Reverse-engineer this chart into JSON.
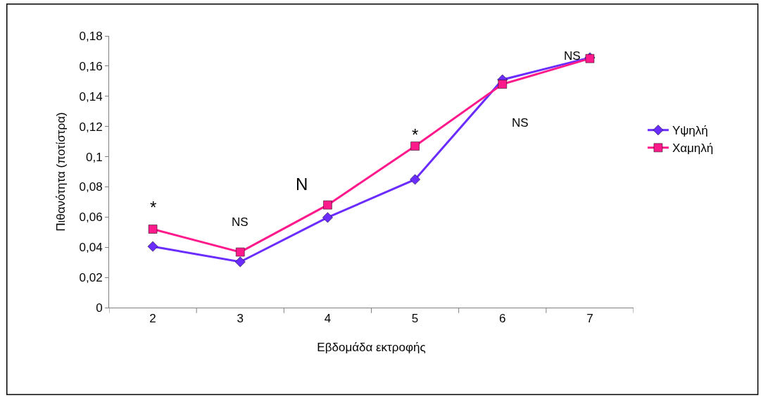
{
  "chart_data": {
    "type": "line",
    "xlabel": "Εβδομάδα εκτροφής",
    "ylabel": "Πιθανότητα (ποτίστρα)",
    "categories": [
      "2",
      "3",
      "4",
      "5",
      "6",
      "7"
    ],
    "series": [
      {
        "name": "Υψηλή",
        "color": "#6a2cff",
        "marker": "diamond",
        "values": [
          0.0405,
          0.0303,
          0.0597,
          0.0849,
          0.151,
          0.1656
        ]
      },
      {
        "name": "Χαμηλή",
        "color": "#ff1a8c",
        "marker": "square",
        "values": [
          0.052,
          0.0368,
          0.068,
          0.107,
          0.148,
          0.165
        ]
      }
    ],
    "ylim": [
      0,
      0.18
    ],
    "yticks": [
      {
        "value": 0,
        "label": "0"
      },
      {
        "value": 0.02,
        "label": "0,02"
      },
      {
        "value": 0.04,
        "label": "0,04"
      },
      {
        "value": 0.06,
        "label": "0,06"
      },
      {
        "value": 0.08,
        "label": "0,08"
      },
      {
        "value": 0.1,
        "label": "0,1"
      },
      {
        "value": 0.12,
        "label": "0,12"
      },
      {
        "value": 0.14,
        "label": "0,14"
      },
      {
        "value": 0.16,
        "label": "0,16"
      },
      {
        "value": 0.18,
        "label": "0,18"
      }
    ],
    "annotations": [
      "*",
      "NS",
      "N",
      "*",
      "NS",
      "NS"
    ],
    "legend": "right",
    "line_style": "solid"
  }
}
